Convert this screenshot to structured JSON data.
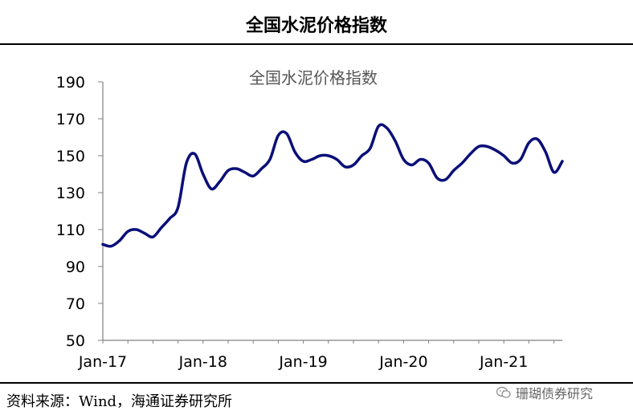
{
  "header": {
    "title": "全国水泥价格指数"
  },
  "footer": {
    "source": "资料来源：Wind，海通证券研究所",
    "watermark": "珊瑚债券研究"
  },
  "colors": {
    "line": "#0a0f78",
    "axis": "#808080"
  },
  "chart_data": {
    "type": "line",
    "title": "全国水泥价格指数",
    "xlabel": "",
    "ylabel": "",
    "ylim": [
      50,
      190
    ],
    "yticks": [
      50,
      70,
      90,
      110,
      130,
      150,
      170,
      190
    ],
    "xlim": [
      "2017-01",
      "2021-08"
    ],
    "xticks": [
      {
        "label": "Jan-17",
        "x": "2017-01"
      },
      {
        "label": "Jan-18",
        "x": "2018-01"
      },
      {
        "label": "Jan-19",
        "x": "2019-01"
      },
      {
        "label": "Jan-20",
        "x": "2020-01"
      },
      {
        "label": "Jan-21",
        "x": "2021-01"
      }
    ],
    "grid": false,
    "x": [
      "2017-01",
      "2017-02",
      "2017-03",
      "2017-04",
      "2017-05",
      "2017-06",
      "2017-07",
      "2017-08",
      "2017-09",
      "2017-10",
      "2017-11",
      "2017-12",
      "2018-01",
      "2018-02",
      "2018-03",
      "2018-04",
      "2018-05",
      "2018-06",
      "2018-07",
      "2018-08",
      "2018-09",
      "2018-10",
      "2018-11",
      "2018-12",
      "2019-01",
      "2019-02",
      "2019-03",
      "2019-04",
      "2019-05",
      "2019-06",
      "2019-07",
      "2019-08",
      "2019-09",
      "2019-10",
      "2019-11",
      "2019-12",
      "2020-01",
      "2020-02",
      "2020-03",
      "2020-04",
      "2020-05",
      "2020-06",
      "2020-07",
      "2020-08",
      "2020-09",
      "2020-10",
      "2020-11",
      "2020-12",
      "2021-01",
      "2021-02",
      "2021-03",
      "2021-04",
      "2021-05",
      "2021-06",
      "2021-07",
      "2021-08"
    ],
    "series": [
      {
        "values": [
          102,
          101,
          104,
          109,
          110,
          108,
          106,
          111,
          116,
          122,
          146,
          151,
          140,
          132,
          136,
          142,
          143,
          141,
          139,
          143,
          148,
          161,
          162,
          152,
          147,
          148,
          150,
          150,
          148,
          144,
          145,
          150,
          154,
          166,
          165,
          158,
          148,
          145,
          148,
          146,
          138,
          137,
          142,
          146,
          151,
          155,
          155,
          153,
          150,
          146,
          148,
          157,
          159,
          152,
          141,
          147
        ]
      }
    ]
  }
}
